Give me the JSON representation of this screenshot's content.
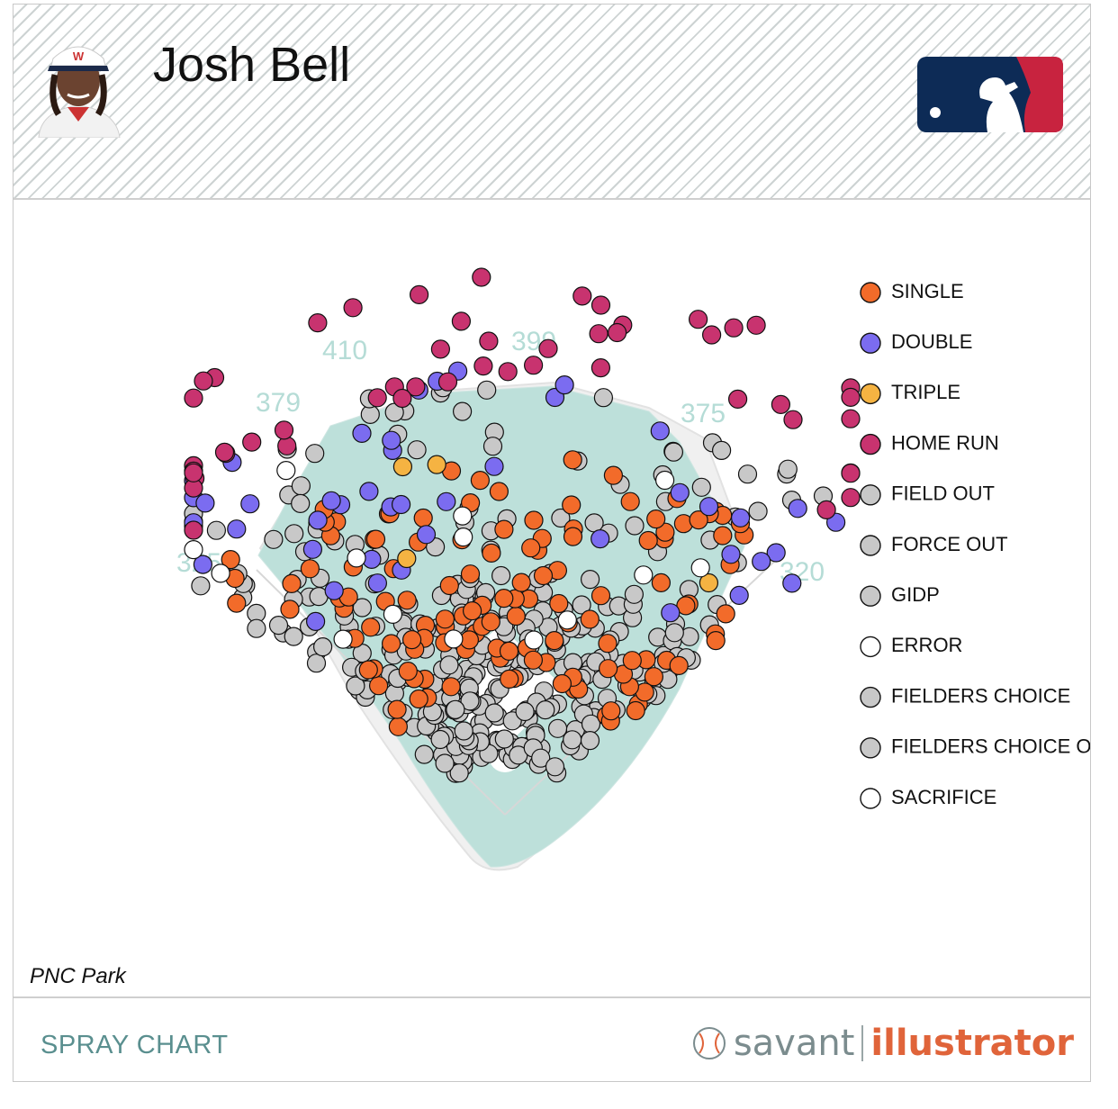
{
  "header": {
    "player_name": "Josh Bell"
  },
  "venue": "PNC Park",
  "footer": {
    "title": "SPRAY CHART",
    "brand_left": "savant",
    "brand_right": "illustrator"
  },
  "colors": {
    "single": "#f26b2a",
    "double": "#7b6cf0",
    "triple": "#f5b342",
    "home_run": "#c8336f",
    "out": "#c8c8c8",
    "error": "#ffffff",
    "field": "#bde0da",
    "accent": "#5a8f8f"
  },
  "chart_data": {
    "type": "scatter",
    "title": "",
    "distance_markers": [
      "410",
      "399",
      "379",
      "375",
      "325",
      "320"
    ],
    "legend": [
      {
        "label": "SINGLE",
        "color": "#f26b2a"
      },
      {
        "label": "DOUBLE",
        "color": "#7b6cf0"
      },
      {
        "label": "TRIPLE",
        "color": "#f5b342"
      },
      {
        "label": "HOME RUN",
        "color": "#c8336f"
      },
      {
        "label": "FIELD OUT",
        "color": "#c8c8c8"
      },
      {
        "label": "FORCE OUT",
        "color": "#c8c8c8"
      },
      {
        "label": "GIDP",
        "color": "#c8c8c8"
      },
      {
        "label": "ERROR",
        "color": "#ffffff"
      },
      {
        "label": "FIELDERS CHOICE",
        "color": "#c8c8c8"
      },
      {
        "label": "FIELDERS CHOICE OUT",
        "color": "#c8c8c8"
      },
      {
        "label": "SACRIFICE",
        "color": "#ffffff"
      }
    ],
    "legend_placement": "right",
    "grid": false
  }
}
